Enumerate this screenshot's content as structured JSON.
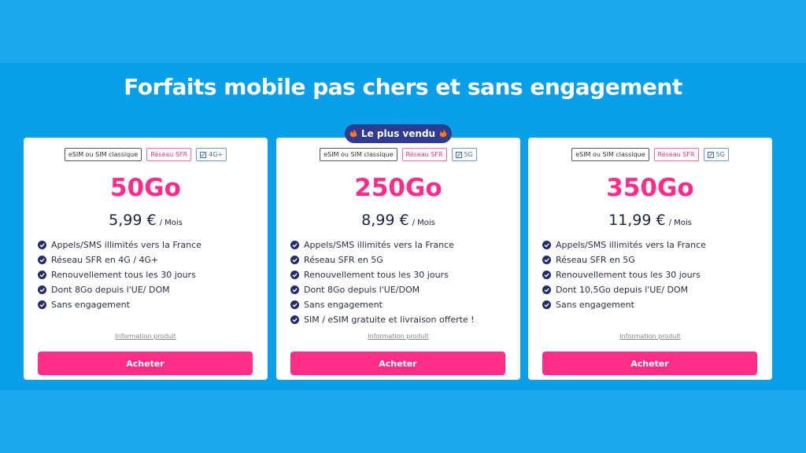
{
  "header": {
    "title": "Forfaits mobile pas chers et sans engagement"
  },
  "badge": {
    "label": "Le plus vendu"
  },
  "plans": [
    {
      "tags": [
        "eSIM ou SIM classique",
        "Réseau SFR",
        "4G+"
      ],
      "data": "50Go",
      "price": "5,99 €",
      "period": "/ Mois",
      "features": [
        "Appels/SMS illimités vers la France",
        "Réseau SFR en 4G / 4G+",
        "Renouvellement tous les 30 jours",
        "Dont 8Go depuis l'UE/ DOM",
        "Sans engagement"
      ],
      "info": "Information produit",
      "button": "Acheter"
    },
    {
      "tags": [
        "eSIM ou SIM classique",
        "Réseau SFR",
        "5G"
      ],
      "data": "250Go",
      "price": "8,99 €",
      "period": "/ Mois",
      "features": [
        "Appels/SMS illimités vers la France",
        "Réseau SFR en 5G",
        "Renouvellement tous les 30 jours",
        "Dont 8Go depuis l'UE/DOM",
        "Sans engagement",
        "SIM / eSIM gratuite et livraison offerte !"
      ],
      "info": "Information produit",
      "button": "Acheter"
    },
    {
      "tags": [
        "eSIM ou SIM classique",
        "Réseau SFR",
        "5G"
      ],
      "data": "350Go",
      "price": "11,99 €",
      "period": "/ Mois",
      "features": [
        "Appels/SMS illimités vers la France",
        "Réseau SFR en 5G",
        "Renouvellement tous les 30 jours",
        "Dont 10,5Go depuis l'UE/ DOM",
        "Sans engagement"
      ],
      "info": "Information produit",
      "button": "Acheter"
    }
  ]
}
